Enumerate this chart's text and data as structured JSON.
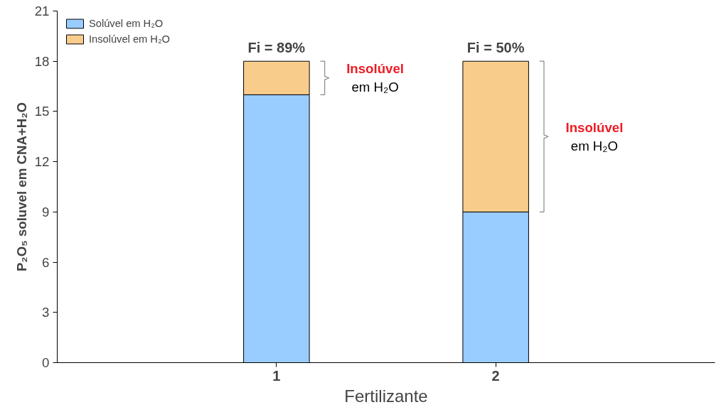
{
  "chart_data": {
    "type": "bar",
    "stacked": true,
    "xlabel": "Fertilizante",
    "ylabel": "P₂O₅ soluvel em CNA+H₂O",
    "categories": [
      "1",
      "2"
    ],
    "series": [
      {
        "name": "Solúvel em H₂O",
        "color": "#99ccff",
        "values": [
          16,
          9
        ]
      },
      {
        "name": "Insolúvel em H₂O",
        "color": "#f8cd8c",
        "values": [
          2,
          9
        ]
      }
    ],
    "ylim": [
      0,
      21
    ],
    "yticks": [
      0,
      3,
      6,
      9,
      12,
      15,
      18,
      21
    ],
    "grid": false,
    "legend": "top left",
    "annotations": [
      {
        "text": "Fi = 89%",
        "x": "1",
        "y": 18
      },
      {
        "text": "Fi = 50%",
        "x": "2",
        "y": 18
      },
      "Insolúvel\nem H₂O",
      "Insolúvel\nem H₂O"
    ]
  }
}
